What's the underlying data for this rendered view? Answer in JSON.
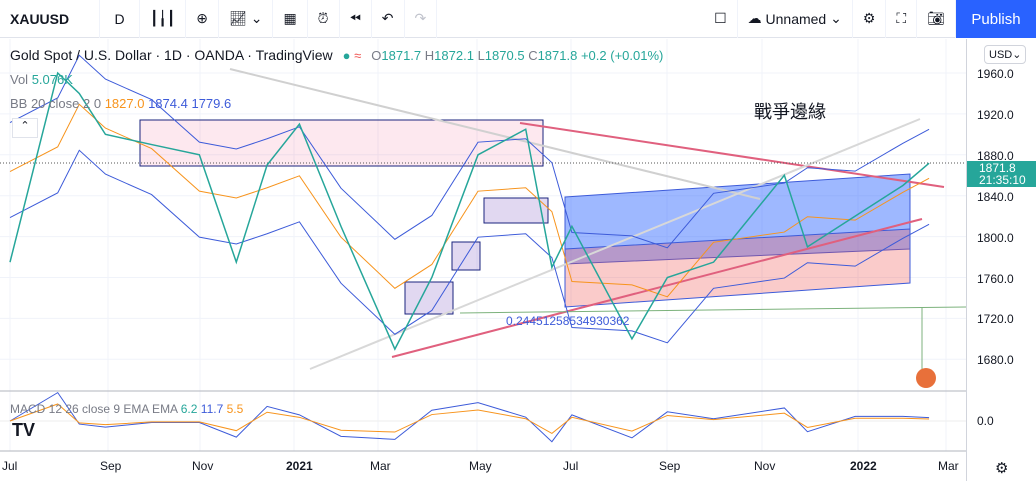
{
  "toolbar": {
    "symbol": "XAUUSD",
    "interval": "D",
    "layout_name": "Unnamed",
    "publish": "Publish",
    "icons": [
      "candles-icon",
      "plus-icon",
      "indicators-icon",
      "chevron-down-icon",
      "layout-grid-icon",
      "alert-icon",
      "replay-icon",
      "undo-icon",
      "redo-icon",
      "square-icon",
      "cloud-check-icon",
      "gear-icon",
      "fullscreen-icon",
      "camera-icon"
    ]
  },
  "legend": {
    "title": "Gold Spot / U.S. Dollar · 1D · OANDA · TradingView",
    "ohlc": {
      "o": "O",
      "ov": "1871.7",
      "h": "H",
      "hv": "1872.1",
      "l": "L",
      "lv": "1870.5",
      "c": "C",
      "cv": "1871.8",
      "chg": "+0.2 (+0.01%)"
    },
    "vol_label": "Vol",
    "vol_value": "5.076K",
    "bb_label": "BB 20 close 2 0",
    "bb_basis": "1827.0",
    "bb_upper": "1874.4",
    "bb_lower": "1779.6"
  },
  "annotation": "戰爭邊緣",
  "fib_label": "0.24451258534930362",
  "macd": {
    "label": "MACD 12 26 close 9 EMA EMA",
    "hist": "6.2",
    "macd": "11.7",
    "signal": "5.5",
    "axis": "0.0"
  },
  "price_axis": {
    "currency": "USD",
    "ticks": [
      "1960.0",
      "1920.0",
      "1880.0",
      "1840.0",
      "1800.0",
      "1760.0",
      "1720.0",
      "1680.0"
    ],
    "last_price": "1871.8",
    "countdown": "21:35:10"
  },
  "time_axis": [
    "Jul",
    "Sep",
    "Nov",
    "2021",
    "Mar",
    "May",
    "Jul",
    "Sep",
    "Nov",
    "2022",
    "Mar"
  ],
  "colors": {
    "up": "#26a69a",
    "down": "#ef5350",
    "bb_basis": "#f7941d",
    "bb_band": "#3d5bd9",
    "publish": "#2962ff"
  },
  "price_series": {
    "dates": [
      "2020-07",
      "2020-08-01",
      "2020-08-15",
      "2020-09",
      "2020-10",
      "2020-11-01",
      "2020-11-25",
      "2020-12-15",
      "2021-01-05",
      "2021-02",
      "2021-03-08",
      "2021-04",
      "2021-05",
      "2021-06-01",
      "2021-06-18",
      "2021-07",
      "2021-08-09",
      "2021-09",
      "2021-10",
      "2021-11-16",
      "2021-12",
      "2022-01",
      "2022-02",
      "2022-02-18"
    ],
    "close": [
      1775,
      1960,
      1940,
      1900,
      1890,
      1880,
      1775,
      1870,
      1910,
      1810,
      1690,
      1760,
      1880,
      1905,
      1770,
      1810,
      1700,
      1760,
      1775,
      1860,
      1790,
      1820,
      1850,
      1871.8
    ]
  }
}
